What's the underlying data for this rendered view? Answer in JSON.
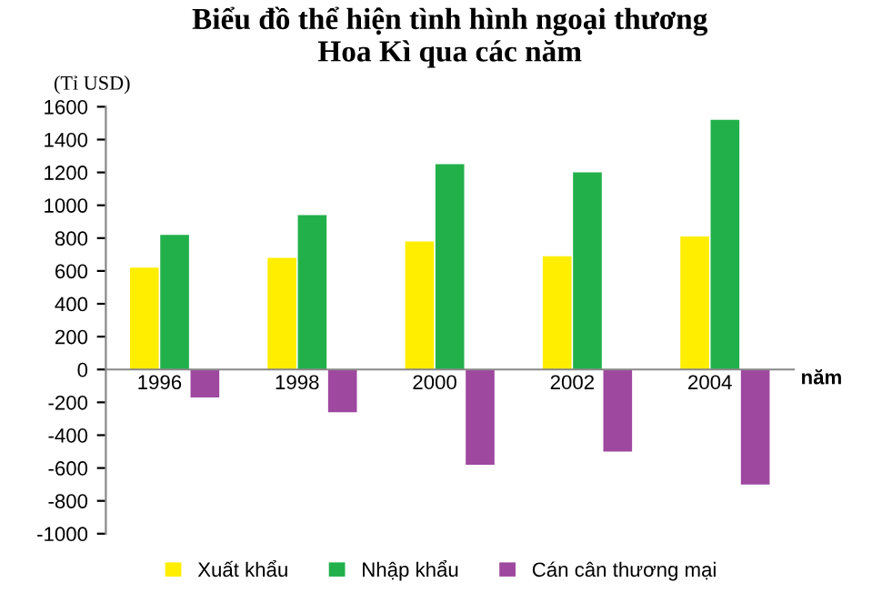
{
  "chart_data": {
    "type": "bar",
    "title": "Biểu đồ thể hiện tình hình ngoại thương\nHoa Kì qua các năm",
    "ylabel": "(Tỉ USD)",
    "xlabel": "năm",
    "categories": [
      "1996",
      "1998",
      "2000",
      "2002",
      "2004"
    ],
    "series": [
      {
        "name": "Xuất khẩu",
        "color": "#ffee00",
        "values": [
          620,
          680,
          780,
          690,
          810
        ]
      },
      {
        "name": "Nhập khẩu",
        "color": "#22b04b",
        "values": [
          820,
          940,
          1250,
          1200,
          1520
        ]
      },
      {
        "name": "Cán cân thương mại",
        "color": "#9e48a0",
        "values": [
          -170,
          -260,
          -580,
          -500,
          -700
        ]
      }
    ],
    "ylim": [
      -1000,
      1600
    ],
    "yticks": [
      -1000,
      -800,
      -600,
      -400,
      -200,
      0,
      200,
      400,
      600,
      800,
      1000,
      1200,
      1400,
      1600
    ],
    "grid": false,
    "legend": "bottom"
  }
}
